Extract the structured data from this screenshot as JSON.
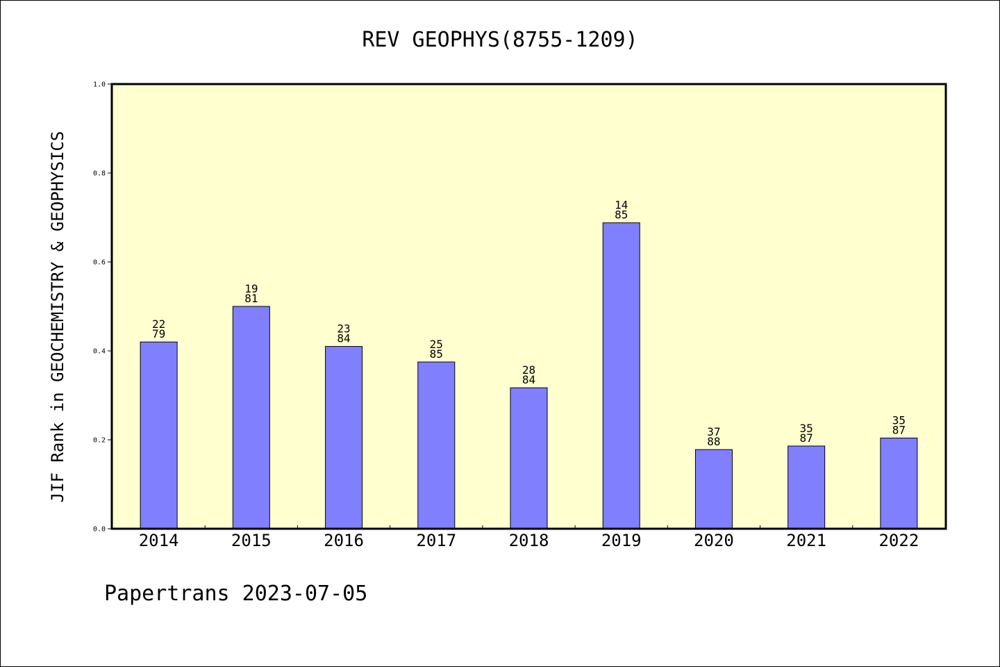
{
  "chart_data": {
    "type": "bar",
    "title": "REV GEOPHYS(8755-1209)",
    "ylabel": "JIF Rank in GEOCHEMISTRY & GEOPHYSICS",
    "xlabel": "",
    "ylim": [
      0,
      1.0
    ],
    "yticks": [
      "0.0",
      "0.2",
      "0.4",
      "0.6",
      "0.8",
      "1.0"
    ],
    "grid": false,
    "categories": [
      "2014",
      "2015",
      "2016",
      "2017",
      "2018",
      "2019",
      "2020",
      "2021",
      "2022"
    ],
    "values": [
      0.42,
      0.5,
      0.41,
      0.375,
      0.317,
      0.688,
      0.178,
      0.186,
      0.204
    ],
    "ranks": [
      "22",
      "19",
      "23",
      "25",
      "28",
      "14",
      "37",
      "35",
      "35"
    ],
    "totals": [
      "79",
      "81",
      "84",
      "85",
      "84",
      "85",
      "88",
      "87",
      "87"
    ],
    "colors": {
      "bar": "#8080ff",
      "plot_bg": "#ffffd0",
      "axis": "#000000"
    }
  },
  "footer": "Papertrans 2023-07-05"
}
